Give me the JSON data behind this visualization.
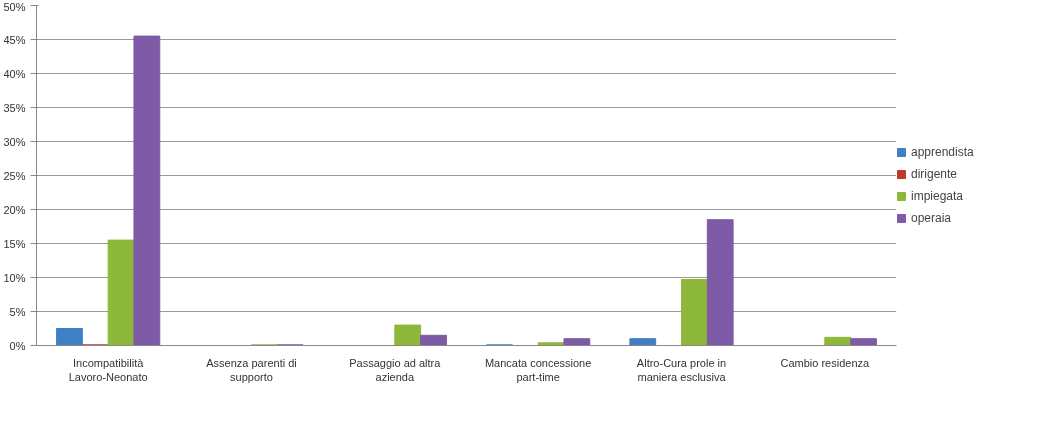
{
  "chart_data": {
    "type": "bar",
    "categories": [
      "Incompatibilità Lavoro-Neonato",
      "Assenza parenti di supporto",
      "Passaggio ad altra azienda",
      "Mancata concessione part-time",
      "Altro-Cura prole in maniera esclusiva",
      "Cambio residenza"
    ],
    "series": [
      {
        "name": "apprendista",
        "color": "#3f7fc4",
        "values": [
          2.5,
          0,
          0,
          0.1,
          1,
          0
        ]
      },
      {
        "name": "dirigente",
        "color": "#c0392b",
        "values": [
          0.1,
          0,
          0,
          0,
          0,
          0
        ]
      },
      {
        "name": "impiegata",
        "color": "#8db83a",
        "values": [
          15.5,
          0.1,
          3,
          0.4,
          9.7,
          1.2
        ]
      },
      {
        "name": "operaia",
        "color": "#7d5ba6",
        "values": [
          45.5,
          0.1,
          1.5,
          1,
          18.5,
          1
        ]
      }
    ],
    "ylim": [
      0,
      50
    ],
    "yticks": [
      {
        "value": 0,
        "label": "0%"
      },
      {
        "value": 5,
        "label": "5%"
      },
      {
        "value": 10,
        "label": "10%"
      },
      {
        "value": 15,
        "label": "15%"
      },
      {
        "value": 20,
        "label": "20%"
      },
      {
        "value": 25,
        "label": "25%"
      },
      {
        "value": 30,
        "label": "30%"
      },
      {
        "value": 35,
        "label": "35%"
      },
      {
        "value": 40,
        "label": "40%"
      },
      {
        "value": 45,
        "label": "45%"
      },
      {
        "value": 50,
        "label": "50%"
      }
    ],
    "grid": "y",
    "legend": "right"
  }
}
